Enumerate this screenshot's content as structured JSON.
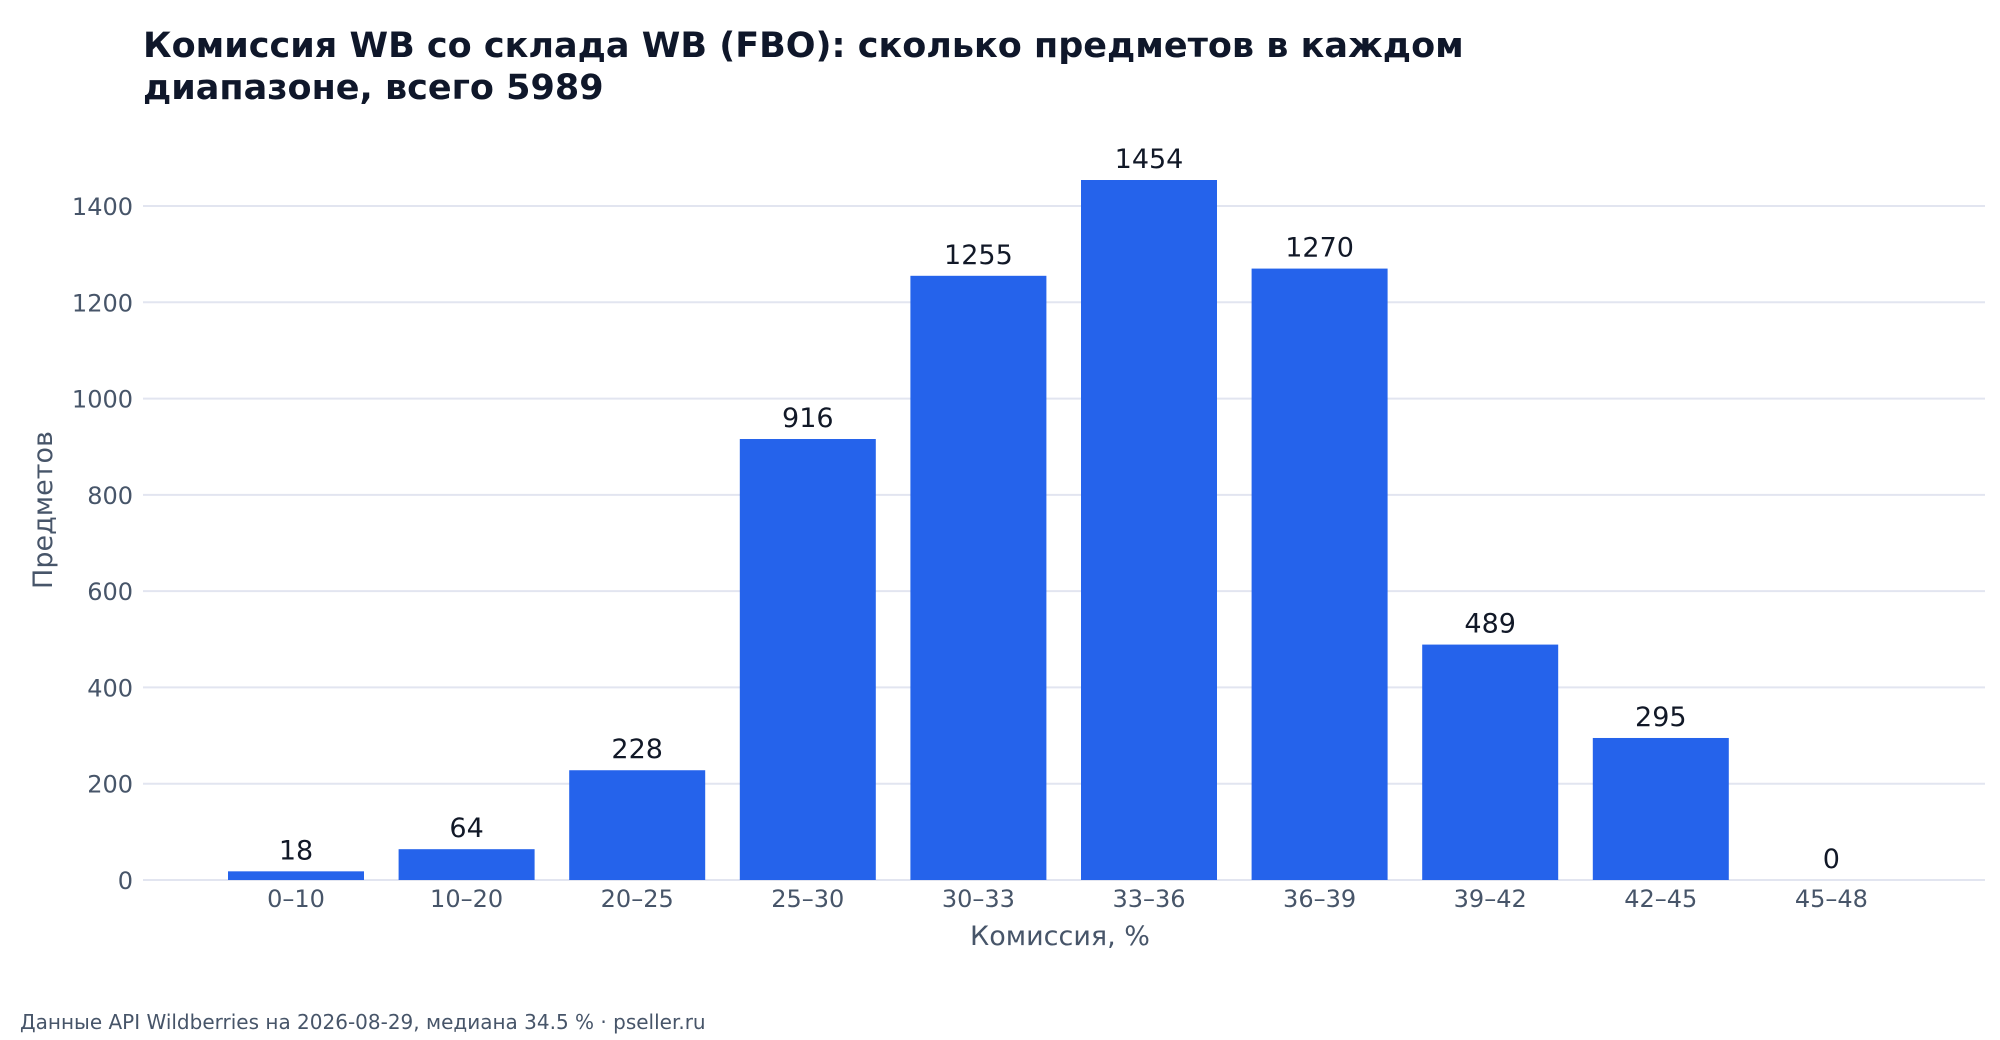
{
  "chart_data": {
    "type": "bar",
    "title": "Комиссия WB со склада WB (FBO): сколько предметов в каждом диапазоне, всего 5989",
    "xlabel": "Комиссия, %",
    "ylabel": "Предметов",
    "categories": [
      "0–10",
      "10–20",
      "20–25",
      "25–30",
      "30–33",
      "33–36",
      "36–39",
      "39–42",
      "42–45",
      "45–48"
    ],
    "values": [
      18,
      64,
      228,
      916,
      1255,
      1454,
      1270,
      489,
      295,
      0
    ],
    "yticks": [
      0,
      200,
      400,
      600,
      800,
      1000,
      1200,
      1400
    ],
    "ylim": [
      0,
      1500
    ],
    "grid": true,
    "bar_color": "#2563eb",
    "grid_color": "#e2e5f0",
    "axis_text_color": "#475569",
    "label_color": "#111827"
  },
  "footer": "Данные API Wildberries на 2026-08-29, медиана 34.5 %  ·  pseller.ru"
}
